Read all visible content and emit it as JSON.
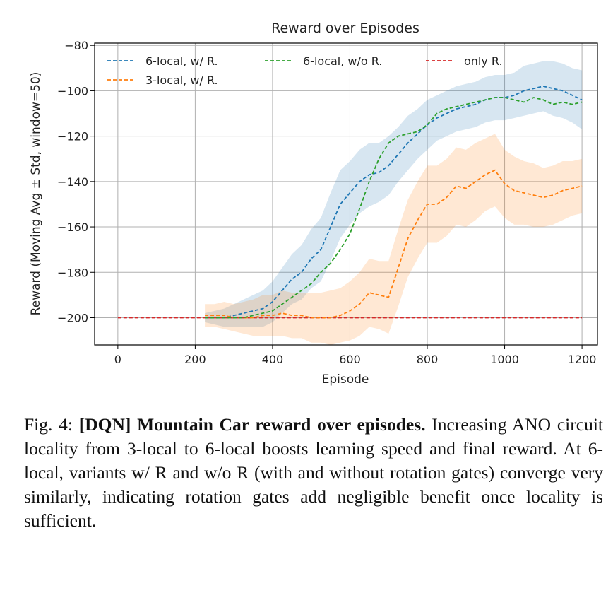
{
  "chart_data": {
    "type": "line",
    "title": "Reward over Episodes",
    "xlabel": "Episode",
    "ylabel": "Reward (Moving Avg ± Std, window=50)",
    "xlim": [
      -60,
      1240
    ],
    "ylim": [
      -212,
      -79
    ],
    "xticks": [
      0,
      200,
      400,
      600,
      800,
      1000,
      1200
    ],
    "yticks": [
      -200,
      -180,
      -160,
      -140,
      -120,
      -100,
      -80
    ],
    "grid": true,
    "legend_position": "top",
    "series": [
      {
        "name": "6-local, w/ R.",
        "color": "#1f77b4",
        "x": [
          225,
          250,
          275,
          300,
          325,
          350,
          375,
          400,
          425,
          450,
          475,
          500,
          525,
          550,
          575,
          600,
          625,
          650,
          675,
          700,
          725,
          750,
          775,
          800,
          825,
          850,
          875,
          900,
          925,
          950,
          975,
          1000,
          1025,
          1050,
          1075,
          1100,
          1125,
          1150,
          1175,
          1200
        ],
        "values": [
          -200,
          -200,
          -200,
          -199,
          -198,
          -197,
          -196,
          -193,
          -188,
          -183,
          -180,
          -174,
          -170,
          -160,
          -150,
          -145,
          -140,
          -137,
          -136,
          -133,
          -128,
          -123,
          -119,
          -115,
          -112,
          -110,
          -108,
          -107,
          -106,
          -104,
          -103,
          -103,
          -102,
          -100,
          -99,
          -98,
          -99,
          -100,
          -102,
          -104
        ],
        "std": [
          2,
          3,
          4,
          5,
          6,
          7,
          8,
          9,
          10,
          11,
          12,
          13,
          14,
          15,
          15,
          14,
          14,
          14,
          13,
          13,
          12,
          12,
          11,
          11,
          10,
          10,
          10,
          10,
          10,
          10,
          10,
          10,
          10,
          11,
          11,
          11,
          12,
          12,
          12,
          13
        ]
      },
      {
        "name": "6-local, w/o R.",
        "color": "#2ca02c",
        "x": [
          225,
          250,
          275,
          300,
          325,
          350,
          375,
          400,
          425,
          450,
          475,
          500,
          525,
          550,
          575,
          600,
          625,
          650,
          675,
          700,
          725,
          750,
          775,
          800,
          825,
          850,
          875,
          900,
          925,
          950,
          975,
          1000,
          1025,
          1050,
          1075,
          1100,
          1125,
          1150,
          1175,
          1200
        ],
        "values": [
          -200,
          -200,
          -200,
          -200,
          -200,
          -199,
          -198,
          -197,
          -194,
          -191,
          -188,
          -185,
          -180,
          -176,
          -170,
          -163,
          -152,
          -140,
          -130,
          -123,
          -120,
          -119,
          -118,
          -115,
          -110,
          -108,
          -107,
          -106,
          -105,
          -104,
          -103,
          -103,
          -104,
          -105,
          -103,
          -104,
          -106,
          -105,
          -106,
          -105
        ]
      },
      {
        "name": "only R.",
        "color": "#d62728",
        "x": [
          0,
          1200
        ],
        "values": [
          -200,
          -200
        ]
      },
      {
        "name": "3-local, w/ R.",
        "color": "#ff7f0e",
        "x": [
          225,
          250,
          275,
          300,
          325,
          350,
          375,
          400,
          425,
          450,
          475,
          500,
          525,
          550,
          575,
          600,
          625,
          650,
          675,
          700,
          725,
          750,
          775,
          800,
          825,
          850,
          875,
          900,
          925,
          950,
          975,
          1000,
          1025,
          1050,
          1075,
          1100,
          1125,
          1150,
          1175,
          1200
        ],
        "values": [
          -199,
          -199,
          -199,
          -200,
          -200,
          -200,
          -199,
          -199,
          -198,
          -199,
          -199,
          -200,
          -200,
          -200,
          -199,
          -197,
          -194,
          -189,
          -190,
          -191,
          -178,
          -165,
          -157,
          -150,
          -150,
          -147,
          -142,
          -143,
          -140,
          -137,
          -135,
          -141,
          -144,
          -145,
          -146,
          -147,
          -146,
          -144,
          -143,
          -142
        ],
        "std": [
          5,
          5,
          6,
          6,
          7,
          8,
          9,
          9,
          10,
          10,
          10,
          11,
          11,
          12,
          12,
          13,
          14,
          15,
          15,
          16,
          17,
          17,
          17,
          17,
          17,
          17,
          17,
          17,
          17,
          16,
          16,
          15,
          15,
          14,
          14,
          13,
          13,
          13,
          12,
          12
        ]
      }
    ]
  },
  "caption": {
    "label": "Fig. 4:",
    "bold_title": "[DQN] Mountain Car reward over episodes.",
    "body": "Increas­ing ANO circuit locality from 3-local to 6-local boosts learning speed and final reward. At 6-local, variants w/ R and w/o R (with and without rotation gates) converge very similarly, indicating rotation gates add negligible benefit once locality is sufficient."
  }
}
